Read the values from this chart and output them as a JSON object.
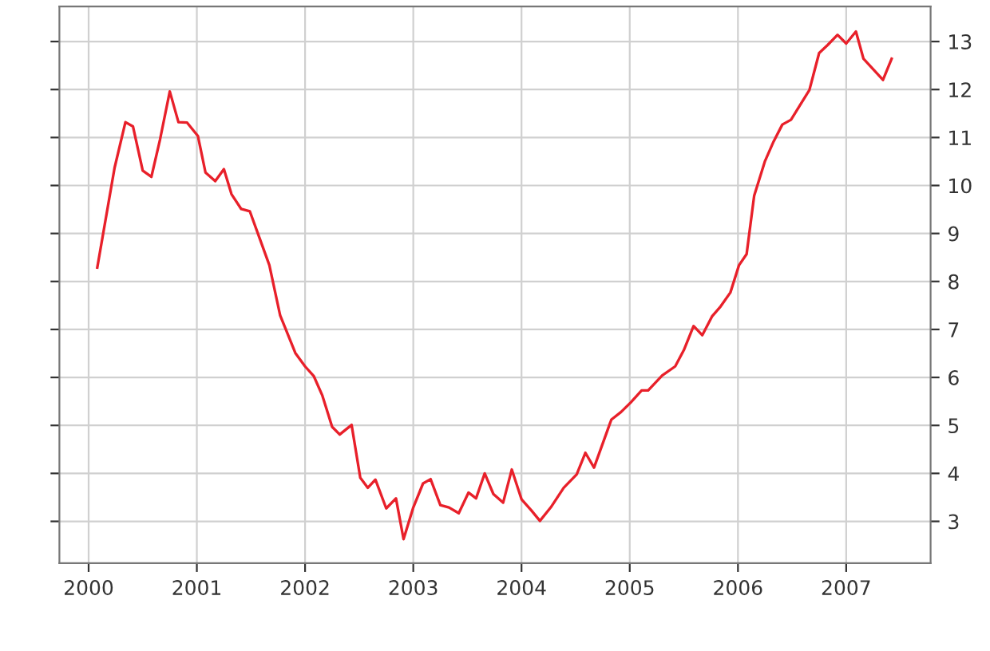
{
  "chart_data": {
    "type": "line",
    "xlim": [
      1999.73,
      2007.78
    ],
    "xticks": [
      2000,
      2001,
      2002,
      2003,
      2004,
      2005,
      2006,
      2007
    ],
    "ylim": [
      2.13,
      13.73
    ],
    "yticks": [
      3,
      4,
      5,
      6,
      7,
      8,
      9,
      10,
      11,
      12,
      13
    ],
    "grid": true,
    "marker": "none",
    "line_style": "solid",
    "series": [
      {
        "color": "#e8202a",
        "x": [
          2000.08,
          2000.24,
          2000.34,
          2000.41,
          2000.5,
          2000.58,
          2000.66,
          2000.75,
          2000.83,
          2000.91,
          2001.01,
          2001.08,
          2001.17,
          2001.25,
          2001.32,
          2001.41,
          2001.49,
          2001.58,
          2001.67,
          2001.77,
          2001.91,
          2002.0,
          2002.08,
          2002.16,
          2002.25,
          2002.32,
          2002.43,
          2002.51,
          2002.58,
          2002.65,
          2002.75,
          2002.84,
          2002.91,
          2003.0,
          2003.09,
          2003.16,
          2003.25,
          2003.33,
          2003.42,
          2003.51,
          2003.58,
          2003.66,
          2003.74,
          2003.83,
          2003.91,
          2004.0,
          2004.09,
          2004.17,
          2004.27,
          2004.39,
          2004.51,
          2004.59,
          2004.67,
          2004.83,
          2004.92,
          2005.01,
          2005.11,
          2005.17,
          2005.3,
          2005.42,
          2005.5,
          2005.59,
          2005.67,
          2005.76,
          2005.84,
          2005.93,
          2006.01,
          2006.08,
          2006.15,
          2006.25,
          2006.33,
          2006.41,
          2006.49,
          2006.58,
          2006.66,
          2006.75,
          2006.83,
          2006.92,
          2007.0,
          2007.09,
          2007.16,
          2007.25,
          2007.34,
          2007.42
        ],
        "values": [
          8.29,
          10.37,
          11.32,
          11.23,
          10.31,
          10.18,
          10.96,
          11.96,
          11.32,
          11.31,
          11.03,
          10.27,
          10.09,
          10.34,
          9.82,
          9.51,
          9.46,
          8.9,
          8.34,
          7.29,
          6.51,
          6.23,
          6.03,
          5.62,
          4.97,
          4.81,
          5.01,
          3.91,
          3.7,
          3.87,
          3.27,
          3.48,
          2.63,
          3.29,
          3.79,
          3.88,
          3.34,
          3.29,
          3.17,
          3.6,
          3.48,
          4.0,
          3.57,
          3.39,
          4.08,
          3.46,
          3.23,
          3.01,
          3.29,
          3.7,
          3.98,
          4.43,
          4.12,
          5.12,
          5.28,
          5.48,
          5.73,
          5.73,
          6.04,
          6.23,
          6.57,
          7.07,
          6.88,
          7.27,
          7.48,
          7.77,
          8.34,
          8.57,
          9.79,
          10.51,
          10.92,
          11.27,
          11.37,
          11.7,
          11.99,
          12.76,
          12.93,
          13.14,
          12.96,
          13.21,
          12.64,
          12.42,
          12.2,
          12.64
        ]
      }
    ]
  }
}
